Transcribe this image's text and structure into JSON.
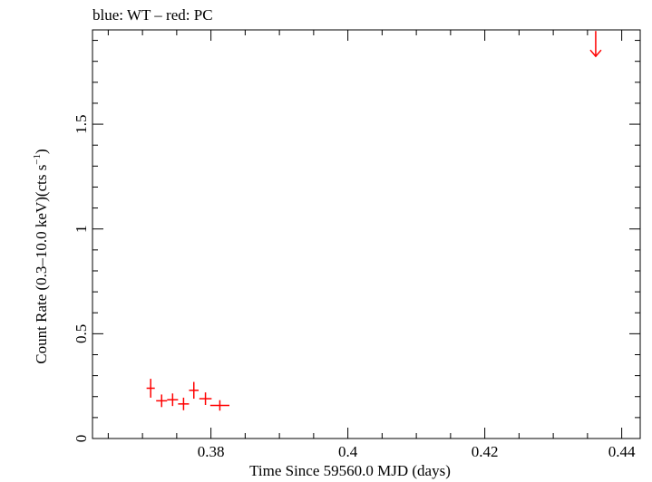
{
  "chart_data": {
    "type": "scatter",
    "title": "blue: WT – red: PC",
    "xlabel": "Time Since 59560.0 MJD (days)",
    "ylabel_main": "Count Rate (0.3–10.0 keV)(cts s",
    "ylabel_sup": "−1",
    "ylabel_close": ")",
    "xlim": [
      0.3627,
      0.4427
    ],
    "ylim": [
      0,
      1.95
    ],
    "x_ticks": [
      0.38,
      0.4,
      0.42,
      0.44
    ],
    "x_tick_labels": [
      "0.38",
      "0.4",
      "0.42",
      "0.44"
    ],
    "y_ticks": [
      0,
      0.5,
      1,
      1.5
    ],
    "y_tick_labels": [
      "0",
      "0.5",
      "1",
      "1.5"
    ],
    "colors": {
      "PC": "#ff0000",
      "WT": "#0000ff",
      "axes": "#000000"
    },
    "series": [
      {
        "name": "PC",
        "points": [
          {
            "x": 0.3712,
            "y": 0.24,
            "xerr": 0.0006,
            "yerr": 0.045
          },
          {
            "x": 0.3728,
            "y": 0.18,
            "xerr": 0.0008,
            "yerr": 0.03
          },
          {
            "x": 0.3744,
            "y": 0.185,
            "xerr": 0.0008,
            "yerr": 0.03
          },
          {
            "x": 0.376,
            "y": 0.165,
            "xerr": 0.0008,
            "yerr": 0.03
          },
          {
            "x": 0.3775,
            "y": 0.23,
            "xerr": 0.0007,
            "yerr": 0.04
          },
          {
            "x": 0.3792,
            "y": 0.19,
            "xerr": 0.0009,
            "yerr": 0.03
          },
          {
            "x": 0.3813,
            "y": 0.158,
            "xerr": 0.0014,
            "yerr": 0.025
          }
        ],
        "upper_limits": [
          {
            "x": 0.4362,
            "y": 1.88
          }
        ]
      },
      {
        "name": "WT",
        "points": []
      }
    ]
  }
}
